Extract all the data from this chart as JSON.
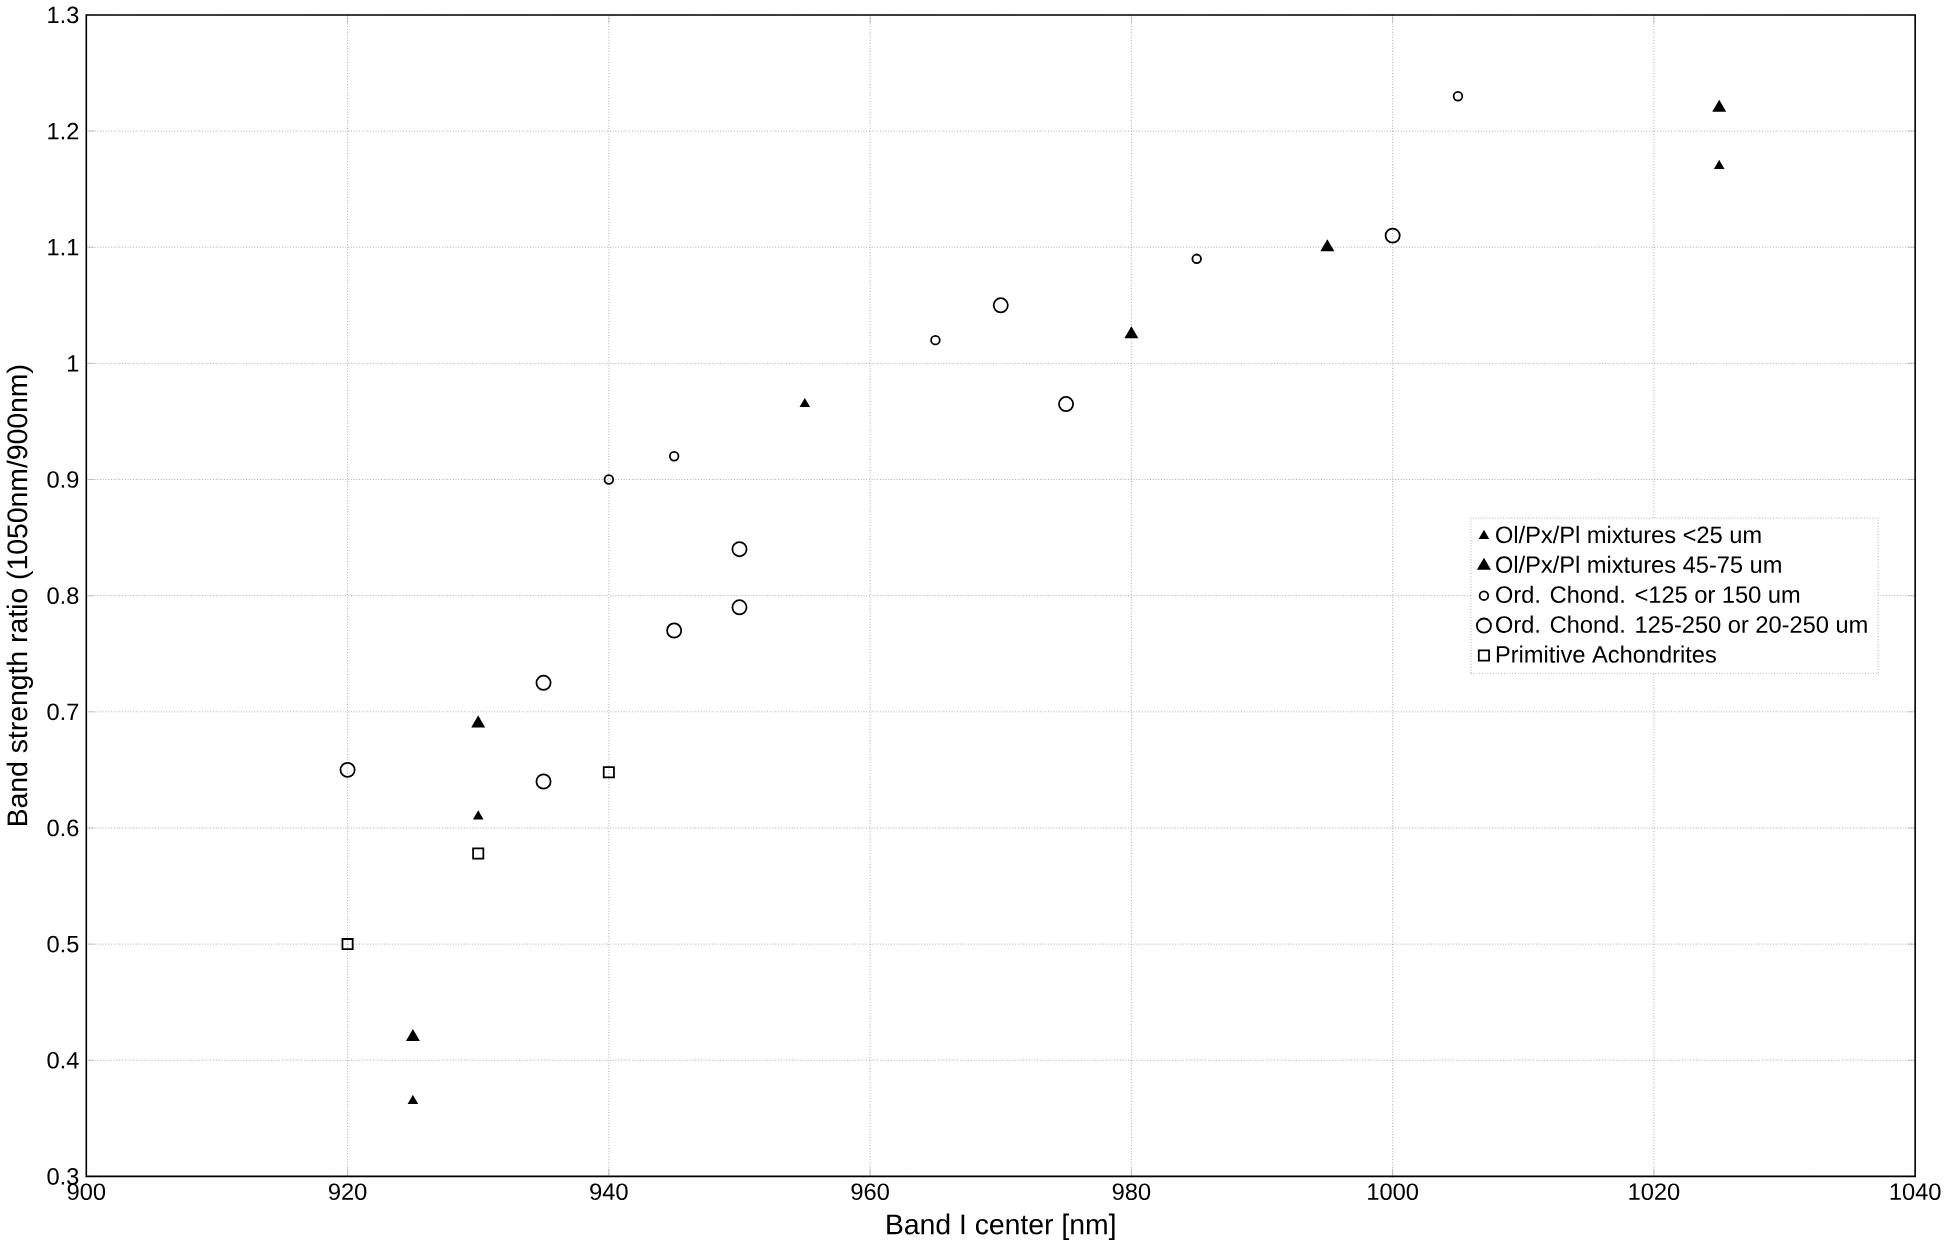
{
  "chart_data": {
    "type": "scatter",
    "xlabel": "Band I center [nm]",
    "ylabel": "Band strength ratio (1050nm/900nm)",
    "xlim": [
      900,
      1040
    ],
    "ylim": [
      0.3,
      1.3
    ],
    "xticks": [
      900,
      920,
      940,
      960,
      980,
      1000,
      1020,
      1040
    ],
    "yticks": [
      0.3,
      0.4,
      0.5,
      0.6,
      0.7,
      0.8,
      0.9,
      1,
      1.1,
      1.2,
      1.3
    ],
    "grid": true,
    "legend": "right",
    "series": [
      {
        "name": "Ol/Px/Pl mixtures <25 um",
        "color": "#000000",
        "marker": "triangle",
        "x": [
          925,
          930,
          955,
          1025
        ],
        "values": [
          0.365,
          0.61,
          0.965,
          1.17
        ]
      },
      {
        "name": "Ol/Px/Pl mixtures 45-75 um",
        "color": "#000000",
        "marker": "triangle",
        "x": [
          925,
          930,
          980,
          995,
          1025
        ],
        "values": [
          0.42,
          0.69,
          1.025,
          1.1,
          1.22
        ]
      },
      {
        "name": "Ord. Chond. <125 or 150 um",
        "color": "#000000",
        "marker": "circle",
        "x": [
          940,
          945,
          965,
          985,
          1005
        ],
        "values": [
          0.9,
          0.92,
          1.02,
          1.09,
          1.23
        ]
      },
      {
        "name": "Ord. Chond. 125-250 or 20-250 um",
        "color": "#000000",
        "marker": "circle",
        "x": [
          920,
          935,
          935,
          945,
          950,
          950,
          970,
          975,
          1000
        ],
        "values": [
          0.65,
          0.64,
          0.725,
          0.77,
          0.79,
          0.84,
          1.05,
          0.965,
          1.11
        ]
      },
      {
        "name": "Primitive Achondrites",
        "color": "#000000",
        "marker": "square",
        "x": [
          920,
          930,
          940
        ],
        "values": [
          0.5,
          0.578,
          0.648
        ]
      }
    ]
  }
}
